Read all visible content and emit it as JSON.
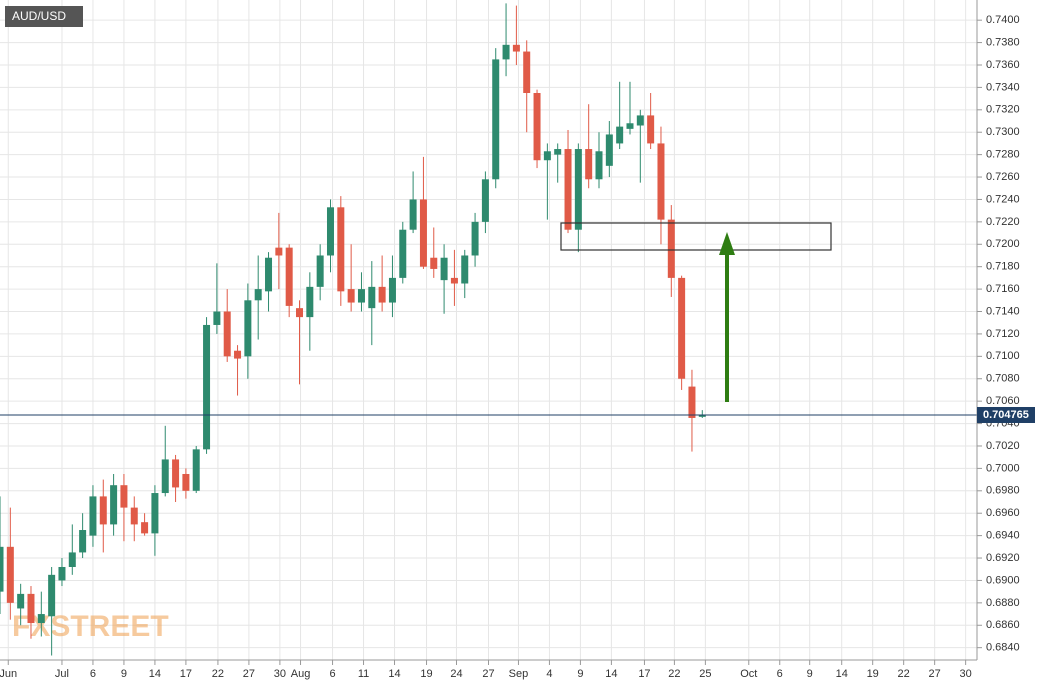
{
  "chart_data": {
    "type": "candlestick",
    "title": "AUD/USD",
    "watermark": "FXSTREET",
    "up_color": "#2e8a6e",
    "down_color": "#e05a47",
    "grid": true,
    "last_price": 0.704765,
    "xlim": [
      0,
      94.6
    ],
    "ylim": [
      0.6829,
      0.7418
    ],
    "xticks": [
      {
        "value": 0.8,
        "label": "Jun"
      },
      {
        "value": 6,
        "label": "Jul"
      },
      {
        "value": 9,
        "label": "6"
      },
      {
        "value": 12,
        "label": "9"
      },
      {
        "value": 15,
        "label": "14"
      },
      {
        "value": 18,
        "label": "17"
      },
      {
        "value": 21.1,
        "label": "22"
      },
      {
        "value": 24.1,
        "label": "27"
      },
      {
        "value": 27.1,
        "label": "30"
      },
      {
        "value": 29.1,
        "label": "Aug"
      },
      {
        "value": 32.2,
        "label": "6"
      },
      {
        "value": 35.2,
        "label": "11"
      },
      {
        "value": 38.2,
        "label": "14"
      },
      {
        "value": 41.3,
        "label": "19"
      },
      {
        "value": 44.2,
        "label": "24"
      },
      {
        "value": 47.3,
        "label": "27"
      },
      {
        "value": 50.2,
        "label": "Sep"
      },
      {
        "value": 53.2,
        "label": "4"
      },
      {
        "value": 56.2,
        "label": "9"
      },
      {
        "value": 59.2,
        "label": "14"
      },
      {
        "value": 62.4,
        "label": "17"
      },
      {
        "value": 65.3,
        "label": "22"
      },
      {
        "value": 68.3,
        "label": "25"
      },
      {
        "value": 72.5,
        "label": "Oct"
      },
      {
        "value": 75.5,
        "label": "6"
      },
      {
        "value": 78.4,
        "label": "9"
      },
      {
        "value": 81.5,
        "label": "14"
      },
      {
        "value": 84.5,
        "label": "19"
      },
      {
        "value": 87.5,
        "label": "22"
      },
      {
        "value": 90.5,
        "label": "27"
      },
      {
        "value": 93.5,
        "label": "30"
      }
    ],
    "yticks": [
      {
        "value": 0.684,
        "label": "0.6840"
      },
      {
        "value": 0.686,
        "label": "0.6860"
      },
      {
        "value": 0.688,
        "label": "0.6880"
      },
      {
        "value": 0.69,
        "label": "0.6900"
      },
      {
        "value": 0.692,
        "label": "0.6920"
      },
      {
        "value": 0.694,
        "label": "0.6940"
      },
      {
        "value": 0.696,
        "label": "0.6960"
      },
      {
        "value": 0.698,
        "label": "0.6980"
      },
      {
        "value": 0.7,
        "label": "0.7000"
      },
      {
        "value": 0.702,
        "label": "0.7020"
      },
      {
        "value": 0.704,
        "label": "0.7040"
      },
      {
        "value": 0.706,
        "label": "0.7060"
      },
      {
        "value": 0.708,
        "label": "0.7080"
      },
      {
        "value": 0.71,
        "label": "0.7100"
      },
      {
        "value": 0.712,
        "label": "0.7120"
      },
      {
        "value": 0.714,
        "label": "0.7140"
      },
      {
        "value": 0.716,
        "label": "0.7160"
      },
      {
        "value": 0.718,
        "label": "0.7180"
      },
      {
        "value": 0.72,
        "label": "0.7200"
      },
      {
        "value": 0.722,
        "label": "0.7220"
      },
      {
        "value": 0.724,
        "label": "0.7240"
      },
      {
        "value": 0.726,
        "label": "0.7260"
      },
      {
        "value": 0.728,
        "label": "0.7280"
      },
      {
        "value": 0.73,
        "label": "0.7300"
      },
      {
        "value": 0.732,
        "label": "0.7320"
      },
      {
        "value": 0.734,
        "label": "0.7340"
      },
      {
        "value": 0.736,
        "label": "0.7360"
      },
      {
        "value": 0.738,
        "label": "0.7380"
      },
      {
        "value": 0.74,
        "label": "0.7400"
      }
    ],
    "candles": [
      [
        0.689,
        0.6975,
        0.687,
        0.693
      ],
      [
        0.693,
        0.6965,
        0.6865,
        0.688
      ],
      [
        0.6875,
        0.6897,
        0.686,
        0.6888
      ],
      [
        0.6888,
        0.6895,
        0.6848,
        0.6862
      ],
      [
        0.6862,
        0.689,
        0.685,
        0.687
      ],
      [
        0.6868,
        0.6912,
        0.6833,
        0.6905
      ],
      [
        0.69,
        0.692,
        0.6895,
        0.6912
      ],
      [
        0.6912,
        0.695,
        0.6905,
        0.6925
      ],
      [
        0.6925,
        0.696,
        0.692,
        0.6945
      ],
      [
        0.694,
        0.6985,
        0.693,
        0.6975
      ],
      [
        0.6975,
        0.699,
        0.6925,
        0.695
      ],
      [
        0.695,
        0.6995,
        0.694,
        0.6985
      ],
      [
        0.6985,
        0.6995,
        0.6935,
        0.6965
      ],
      [
        0.6965,
        0.6975,
        0.6935,
        0.695
      ],
      [
        0.6952,
        0.696,
        0.694,
        0.6942
      ],
      [
        0.6942,
        0.6985,
        0.6922,
        0.6978
      ],
      [
        0.6978,
        0.7038,
        0.6975,
        0.7008
      ],
      [
        0.7008,
        0.7012,
        0.697,
        0.6983
      ],
      [
        0.6995,
        0.7,
        0.6973,
        0.698
      ],
      [
        0.698,
        0.702,
        0.6978,
        0.7017
      ],
      [
        0.7017,
        0.7135,
        0.7013,
        0.7128
      ],
      [
        0.7128,
        0.7183,
        0.712,
        0.714
      ],
      [
        0.714,
        0.716,
        0.7095,
        0.71
      ],
      [
        0.7105,
        0.711,
        0.7065,
        0.7098
      ],
      [
        0.71,
        0.7165,
        0.708,
        0.715
      ],
      [
        0.715,
        0.719,
        0.7115,
        0.716
      ],
      [
        0.7158,
        0.7193,
        0.714,
        0.7188
      ],
      [
        0.7197,
        0.7228,
        0.716,
        0.719
      ],
      [
        0.7197,
        0.72,
        0.7135,
        0.7145
      ],
      [
        0.7143,
        0.715,
        0.7075,
        0.7135
      ],
      [
        0.7135,
        0.7175,
        0.7105,
        0.7162
      ],
      [
        0.7162,
        0.72,
        0.715,
        0.719
      ],
      [
        0.719,
        0.724,
        0.7175,
        0.7233
      ],
      [
        0.7233,
        0.7243,
        0.7145,
        0.7158
      ],
      [
        0.716,
        0.72,
        0.714,
        0.7148
      ],
      [
        0.7148,
        0.7175,
        0.714,
        0.716
      ],
      [
        0.7143,
        0.7185,
        0.711,
        0.7162
      ],
      [
        0.7162,
        0.719,
        0.714,
        0.7148
      ],
      [
        0.7148,
        0.719,
        0.7135,
        0.717
      ],
      [
        0.717,
        0.722,
        0.7165,
        0.7213
      ],
      [
        0.7213,
        0.7265,
        0.721,
        0.724
      ],
      [
        0.724,
        0.7278,
        0.7178,
        0.718
      ],
      [
        0.7188,
        0.7215,
        0.717,
        0.7178
      ],
      [
        0.7168,
        0.72,
        0.7138,
        0.7188
      ],
      [
        0.717,
        0.7195,
        0.7145,
        0.7165
      ],
      [
        0.7165,
        0.7195,
        0.7152,
        0.719
      ],
      [
        0.719,
        0.7228,
        0.718,
        0.722
      ],
      [
        0.722,
        0.7265,
        0.721,
        0.7258
      ],
      [
        0.7258,
        0.7375,
        0.725,
        0.7365
      ],
      [
        0.7365,
        0.7415,
        0.735,
        0.7378
      ],
      [
        0.7378,
        0.7413,
        0.736,
        0.7372
      ],
      [
        0.7372,
        0.7382,
        0.73,
        0.7335
      ],
      [
        0.7335,
        0.7338,
        0.7268,
        0.7275
      ],
      [
        0.7275,
        0.729,
        0.7222,
        0.7283
      ],
      [
        0.728,
        0.729,
        0.7255,
        0.7285
      ],
      [
        0.7285,
        0.7302,
        0.721,
        0.7213
      ],
      [
        0.7213,
        0.729,
        0.7193,
        0.7285
      ],
      [
        0.7285,
        0.7325,
        0.725,
        0.7258
      ],
      [
        0.7258,
        0.73,
        0.725,
        0.7283
      ],
      [
        0.727,
        0.731,
        0.726,
        0.7298
      ],
      [
        0.729,
        0.7345,
        0.7285,
        0.7305
      ],
      [
        0.7303,
        0.7345,
        0.7298,
        0.7308
      ],
      [
        0.7306,
        0.732,
        0.7255,
        0.7315
      ],
      [
        0.7315,
        0.7335,
        0.7285,
        0.729
      ],
      [
        0.729,
        0.7305,
        0.72,
        0.7222
      ],
      [
        0.7222,
        0.7235,
        0.7153,
        0.717
      ],
      [
        0.717,
        0.7172,
        0.707,
        0.708
      ],
      [
        0.7073,
        0.7088,
        0.7015,
        0.7045
      ],
      [
        0.7046,
        0.7052,
        0.7045,
        0.7048
      ]
    ]
  }
}
